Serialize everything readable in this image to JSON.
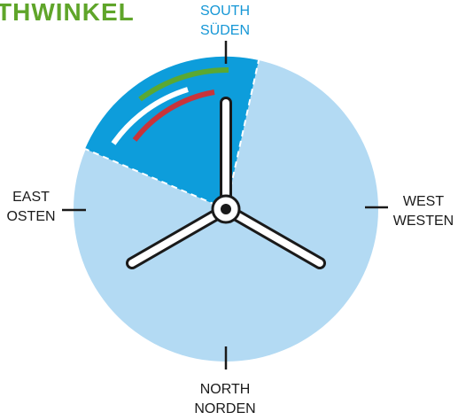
{
  "title": {
    "text": "THWINKEL",
    "color": "#5fa52a"
  },
  "directions": {
    "south": {
      "en": "SOUTH",
      "de": "SÜDEN"
    },
    "east": {
      "en": "EAST",
      "de": "OSTEN"
    },
    "west": {
      "en": "WEST",
      "de": "WESTEN"
    },
    "north": {
      "en": "NORTH",
      "de": "NORDEN"
    }
  },
  "colors": {
    "circle": "#b3daf3",
    "highlight_sector": "#0d9ddb",
    "arc_green": "#5aa832",
    "arc_white": "#ffffff",
    "arc_red": "#c8343a",
    "turbine": "#1a1a1a"
  },
  "icons": [
    "wind-turbine-icon"
  ]
}
